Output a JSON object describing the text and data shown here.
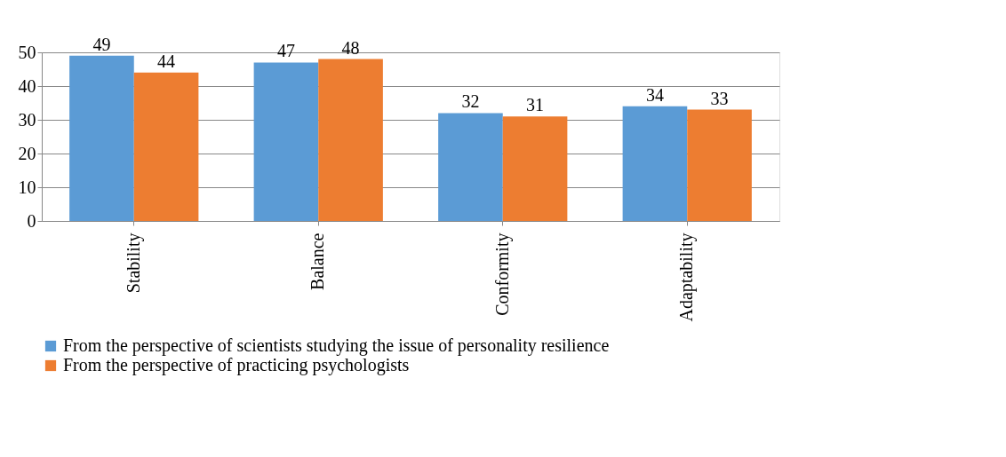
{
  "chart_data": {
    "type": "bar",
    "categories": [
      "Stability",
      "Balance",
      "Conformity",
      "Adaptability"
    ],
    "series": [
      {
        "name": "From the perspective of scientists studying the issue of personality resilience",
        "color": "#5b9bd5",
        "values": [
          49,
          47,
          32,
          34
        ]
      },
      {
        "name": "From the perspective of practicing psychologists",
        "color": "#ed7d31",
        "values": [
          44,
          48,
          31,
          33
        ]
      }
    ],
    "ylim": [
      0,
      50
    ],
    "yticks": [
      0,
      10,
      20,
      30,
      40,
      50
    ],
    "grid": "y",
    "legend": "bottom",
    "data_labels": true
  }
}
